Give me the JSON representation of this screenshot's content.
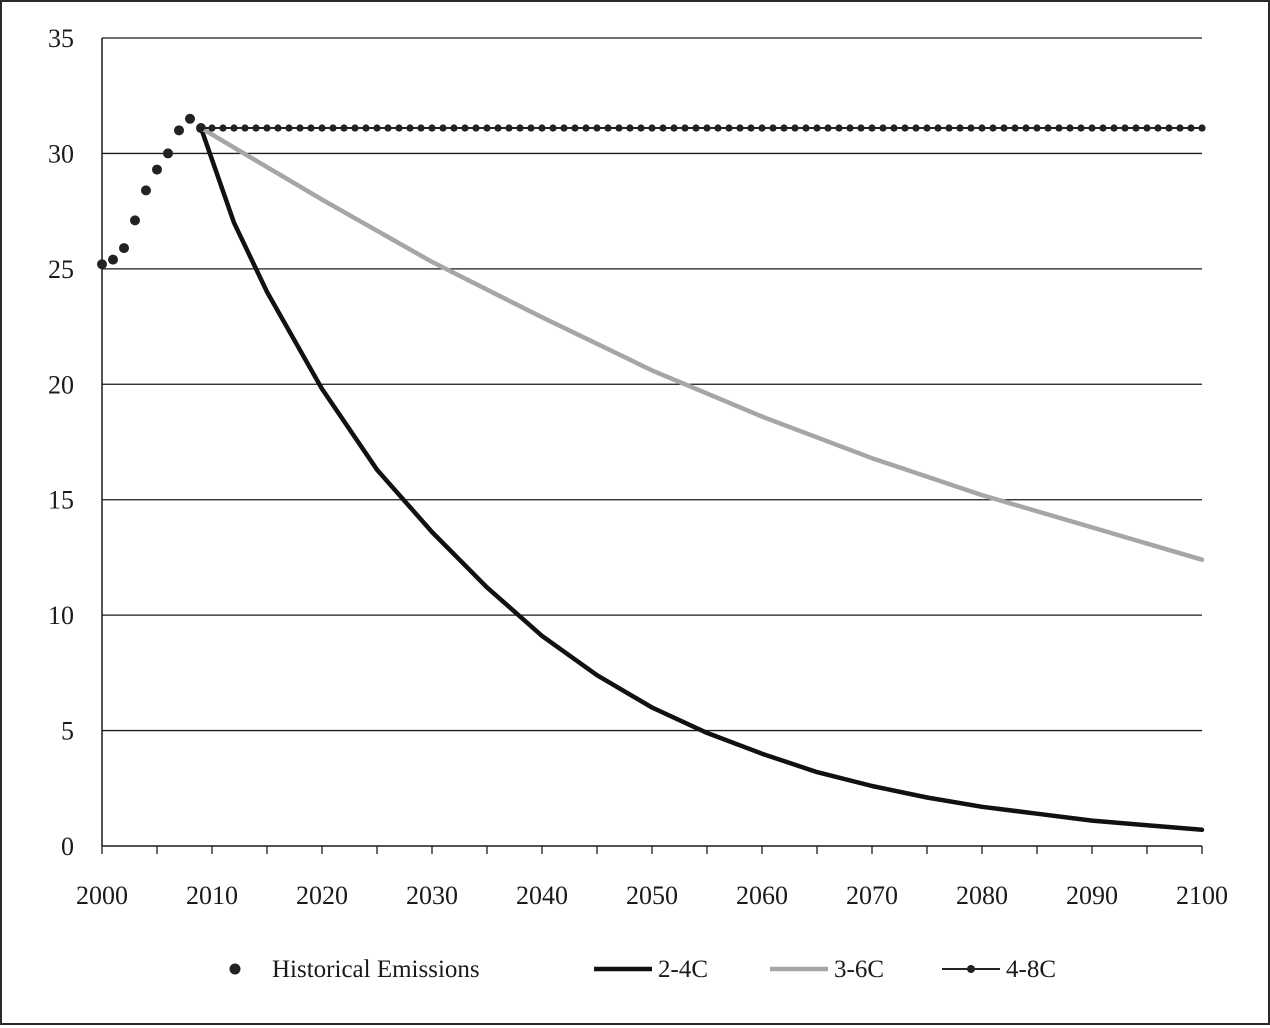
{
  "chart_data": {
    "type": "line",
    "title": "",
    "xlabel": "",
    "ylabel": "",
    "xlim": [
      2000,
      2100
    ],
    "ylim": [
      0,
      35
    ],
    "x_ticks": [
      2000,
      2010,
      2020,
      2030,
      2040,
      2050,
      2060,
      2070,
      2080,
      2090,
      2100
    ],
    "y_ticks": [
      0,
      5,
      10,
      15,
      20,
      25,
      30,
      35
    ],
    "x_tick_labels": [
      "2000",
      "2010",
      "2020",
      "2030",
      "2040",
      "2050",
      "2060",
      "2070",
      "2080",
      "2090",
      "2100"
    ],
    "y_tick_labels": [
      "0",
      "5",
      "10",
      "15",
      "20",
      "25",
      "30",
      "35"
    ],
    "grid": "horizontal",
    "legend_position": "bottom",
    "series": [
      {
        "name": "Historical Emissions",
        "style": "markers",
        "color": "#222222",
        "x": [
          2000,
          2001,
          2002,
          2003,
          2004,
          2005,
          2006,
          2007,
          2008,
          2009
        ],
        "y": [
          25.2,
          25.4,
          25.9,
          27.1,
          28.4,
          29.3,
          30.0,
          31.0,
          31.5,
          31.1
        ]
      },
      {
        "name": "2-4C",
        "style": "line",
        "color": "#111111",
        "x": [
          2009,
          2012,
          2015,
          2020,
          2025,
          2030,
          2035,
          2040,
          2045,
          2050,
          2055,
          2060,
          2065,
          2070,
          2075,
          2080,
          2085,
          2090,
          2095,
          2100
        ],
        "y": [
          31.1,
          27.0,
          24.0,
          19.8,
          16.3,
          13.6,
          11.2,
          9.1,
          7.4,
          6.0,
          4.9,
          4.0,
          3.2,
          2.6,
          2.1,
          1.7,
          1.4,
          1.1,
          0.9,
          0.7
        ]
      },
      {
        "name": "3-6C",
        "style": "line",
        "color": "#a6a6a6",
        "x": [
          2009,
          2020,
          2030,
          2040,
          2050,
          2060,
          2070,
          2080,
          2090,
          2100
        ],
        "y": [
          31.1,
          28.0,
          25.3,
          22.9,
          20.6,
          18.6,
          16.8,
          15.2,
          13.8,
          12.4
        ]
      },
      {
        "name": "4-8C",
        "style": "dotted-line",
        "color": "#222222",
        "x": [
          2009,
          2100
        ],
        "y": [
          31.1,
          31.1
        ]
      }
    ]
  }
}
